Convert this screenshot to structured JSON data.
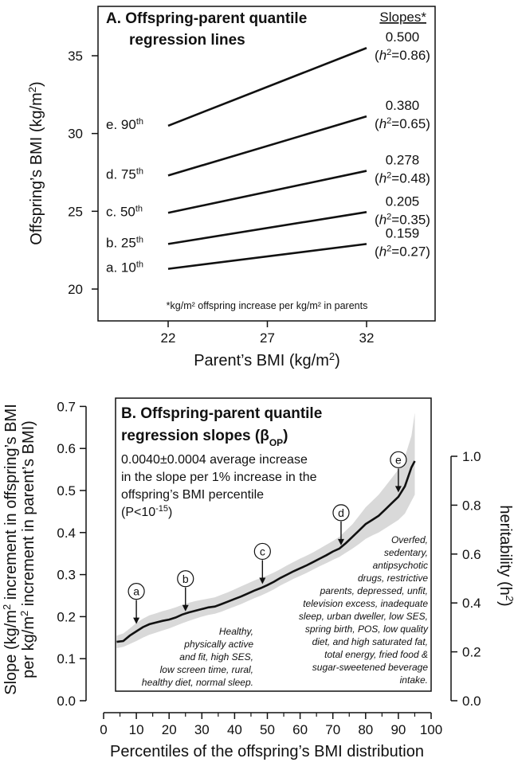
{
  "chart_data": [
    {
      "type": "line",
      "title": "A.  Offspring-parent quantile",
      "title2": "regression lines",
      "xlabel": "Parent’s BMI (kg/m",
      "xlabel_sup": "2",
      "xlabel_end": ")",
      "ylabel": "Offspring’s BMI (kg/m",
      "ylabel_sup": "2",
      "ylabel_end": ")",
      "xlim": [
        22,
        32
      ],
      "ylim": [
        19.5,
        36.5
      ],
      "x_ticks": [
        "22",
        "27",
        "32"
      ],
      "y_ticks": [
        "20",
        "25",
        "30",
        "35"
      ],
      "slopes_header": "Slopes*",
      "footnote": "*kg/m² offspring increase per kg/m² in parents",
      "series": [
        {
          "name": "a. 10",
          "sup": "th",
          "x": [
            22,
            32
          ],
          "y": [
            21.3,
            22.9
          ],
          "slope": "0.159",
          "h2": "0.27"
        },
        {
          "name": "b. 25",
          "sup": "th",
          "x": [
            22,
            32
          ],
          "y": [
            22.9,
            24.95
          ],
          "slope": "0.205",
          "h2": "0.35"
        },
        {
          "name": "c. 50",
          "sup": "th",
          "x": [
            22,
            32
          ],
          "y": [
            24.9,
            27.6
          ],
          "slope": "0.278",
          "h2": "0.48"
        },
        {
          "name": "d. 75",
          "sup": "th",
          "x": [
            22,
            32
          ],
          "y": [
            27.3,
            31.1
          ],
          "slope": "0.380",
          "h2": "0.65"
        },
        {
          "name": "e. 90",
          "sup": "th",
          "x": [
            22,
            32
          ],
          "y": [
            30.5,
            35.5
          ],
          "slope": "0.500",
          "h2": "0.86"
        }
      ]
    },
    {
      "type": "line",
      "title_line1": "B. Offspring-parent quantile",
      "title_line2": "regression slopes (β",
      "title_sub": "OP",
      "title_end": ")",
      "note": [
        "0.0040±0.0004 average increase",
        "in the slope per 1% increase in the",
        "offspring’s BMI percentile",
        "(P<10"
      ],
      "note_sup": "-15",
      "note_end": ")",
      "xlabel": "Percentiles of the offspring’s BMI distribution",
      "ylabel_line1": "Slope (kg/m",
      "ylabel_line1_sup": "2",
      "ylabel_line1_end": " increment in offspring’s BMI",
      "ylabel_line2": "per kg/m",
      "ylabel_line2_sup": "2",
      "ylabel_line2_end": " increment in parent’s BMI)",
      "y2label": "heritability (h",
      "y2label_sup": "2",
      "y2label_end": ")",
      "xlim": [
        0,
        100
      ],
      "ylim": [
        -0.02,
        0.73
      ],
      "x_ticks": [
        "0",
        "10",
        "20",
        "30",
        "40",
        "50",
        "60",
        "70",
        "80",
        "90",
        "100"
      ],
      "y_ticks": [
        "0.0",
        "0.1",
        "0.2",
        "0.3",
        "0.4",
        "0.5",
        "0.6",
        "0.7"
      ],
      "y2_ticks": [
        "0.0",
        "0.2",
        "0.4",
        "0.6",
        "0.8",
        "1.0"
      ],
      "x": [
        4,
        6,
        8,
        10,
        12,
        14,
        16,
        18,
        20,
        22,
        24,
        26,
        28,
        30,
        32,
        34,
        36,
        38,
        40,
        42,
        44,
        46,
        48,
        50,
        52,
        54,
        56,
        58,
        60,
        62,
        64,
        66,
        68,
        70,
        72,
        74,
        76,
        78,
        80,
        82,
        84,
        86,
        88,
        90,
        92,
        94,
        95
      ],
      "y": [
        0.14,
        0.142,
        0.155,
        0.165,
        0.175,
        0.182,
        0.186,
        0.19,
        0.193,
        0.198,
        0.205,
        0.21,
        0.214,
        0.218,
        0.222,
        0.224,
        0.23,
        0.236,
        0.242,
        0.248,
        0.255,
        0.262,
        0.268,
        0.275,
        0.283,
        0.292,
        0.3,
        0.308,
        0.315,
        0.322,
        0.33,
        0.338,
        0.346,
        0.355,
        0.362,
        0.375,
        0.39,
        0.405,
        0.42,
        0.43,
        0.44,
        0.455,
        0.47,
        0.485,
        0.51,
        0.555,
        0.57
      ],
      "band_lower": [
        0.125,
        0.128,
        0.135,
        0.142,
        0.15,
        0.157,
        0.162,
        0.167,
        0.172,
        0.178,
        0.184,
        0.19,
        0.195,
        0.2,
        0.204,
        0.207,
        0.212,
        0.218,
        0.224,
        0.23,
        0.237,
        0.244,
        0.25,
        0.257,
        0.265,
        0.274,
        0.282,
        0.29,
        0.297,
        0.304,
        0.312,
        0.32,
        0.327,
        0.335,
        0.342,
        0.352,
        0.362,
        0.373,
        0.385,
        0.393,
        0.4,
        0.41,
        0.42,
        0.43,
        0.445,
        0.475,
        0.49
      ],
      "band_upper": [
        0.155,
        0.16,
        0.172,
        0.185,
        0.195,
        0.203,
        0.208,
        0.213,
        0.217,
        0.222,
        0.228,
        0.233,
        0.237,
        0.24,
        0.243,
        0.246,
        0.252,
        0.258,
        0.265,
        0.272,
        0.279,
        0.286,
        0.292,
        0.298,
        0.305,
        0.313,
        0.322,
        0.33,
        0.338,
        0.345,
        0.353,
        0.362,
        0.371,
        0.38,
        0.39,
        0.405,
        0.42,
        0.44,
        0.46,
        0.475,
        0.49,
        0.51,
        0.53,
        0.55,
        0.58,
        0.63,
        0.685
      ],
      "markers": [
        {
          "label": "a",
          "x": 10,
          "y": 0.175
        },
        {
          "label": "b",
          "x": 25,
          "y": 0.205
        },
        {
          "label": "c",
          "x": 48.5,
          "y": 0.27
        },
        {
          "label": "d",
          "x": 72.5,
          "y": 0.362
        },
        {
          "label": "e",
          "x": 90,
          "y": 0.488
        }
      ],
      "left_note": [
        "Healthy,",
        "physically active",
        "and fit, high SES,",
        "low screen time, rural,",
        "healthy diet, normal sleep."
      ],
      "right_note": [
        "Overfed,",
        "sedentary,",
        "antipsychotic",
        "drugs, restrictive",
        "parents, depressed, unfit,",
        "television excess, inadequate",
        "sleep, urban dweller, low SES,",
        "spring birth, POS, low quality",
        "diet, and high saturated fat,",
        "total energy, fried food &",
        "sugar-sweetened beverage",
        "intake."
      ]
    }
  ]
}
